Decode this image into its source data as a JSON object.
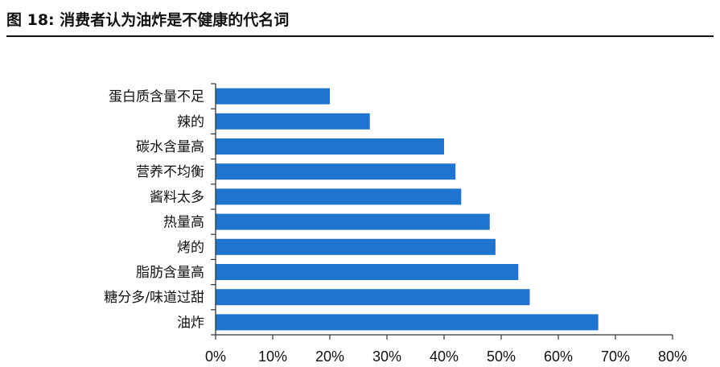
{
  "figure": {
    "title": "图 18:  消费者认为油炸是不健康的代名词"
  },
  "chart_data": {
    "type": "bar",
    "orientation": "horizontal",
    "categories": [
      "蛋白质含量不足",
      "辣的",
      "碳水含量高",
      "营养不均衡",
      "酱料太多",
      "热量高",
      "烤的",
      "脂肪含量高",
      "糖分多/味道过甜",
      "油炸"
    ],
    "values": [
      0.2,
      0.27,
      0.4,
      0.42,
      0.43,
      0.48,
      0.49,
      0.53,
      0.55,
      0.67
    ],
    "xlim": [
      0,
      0.8
    ],
    "xticks": [
      0,
      0.1,
      0.2,
      0.3,
      0.4,
      0.5,
      0.6,
      0.7,
      0.8
    ],
    "xtick_labels": [
      "0%",
      "10%",
      "20%",
      "30%",
      "40%",
      "50%",
      "60%",
      "70%",
      "80%"
    ],
    "bar_color": "#1f74cf",
    "grid": false,
    "legend": "none"
  }
}
